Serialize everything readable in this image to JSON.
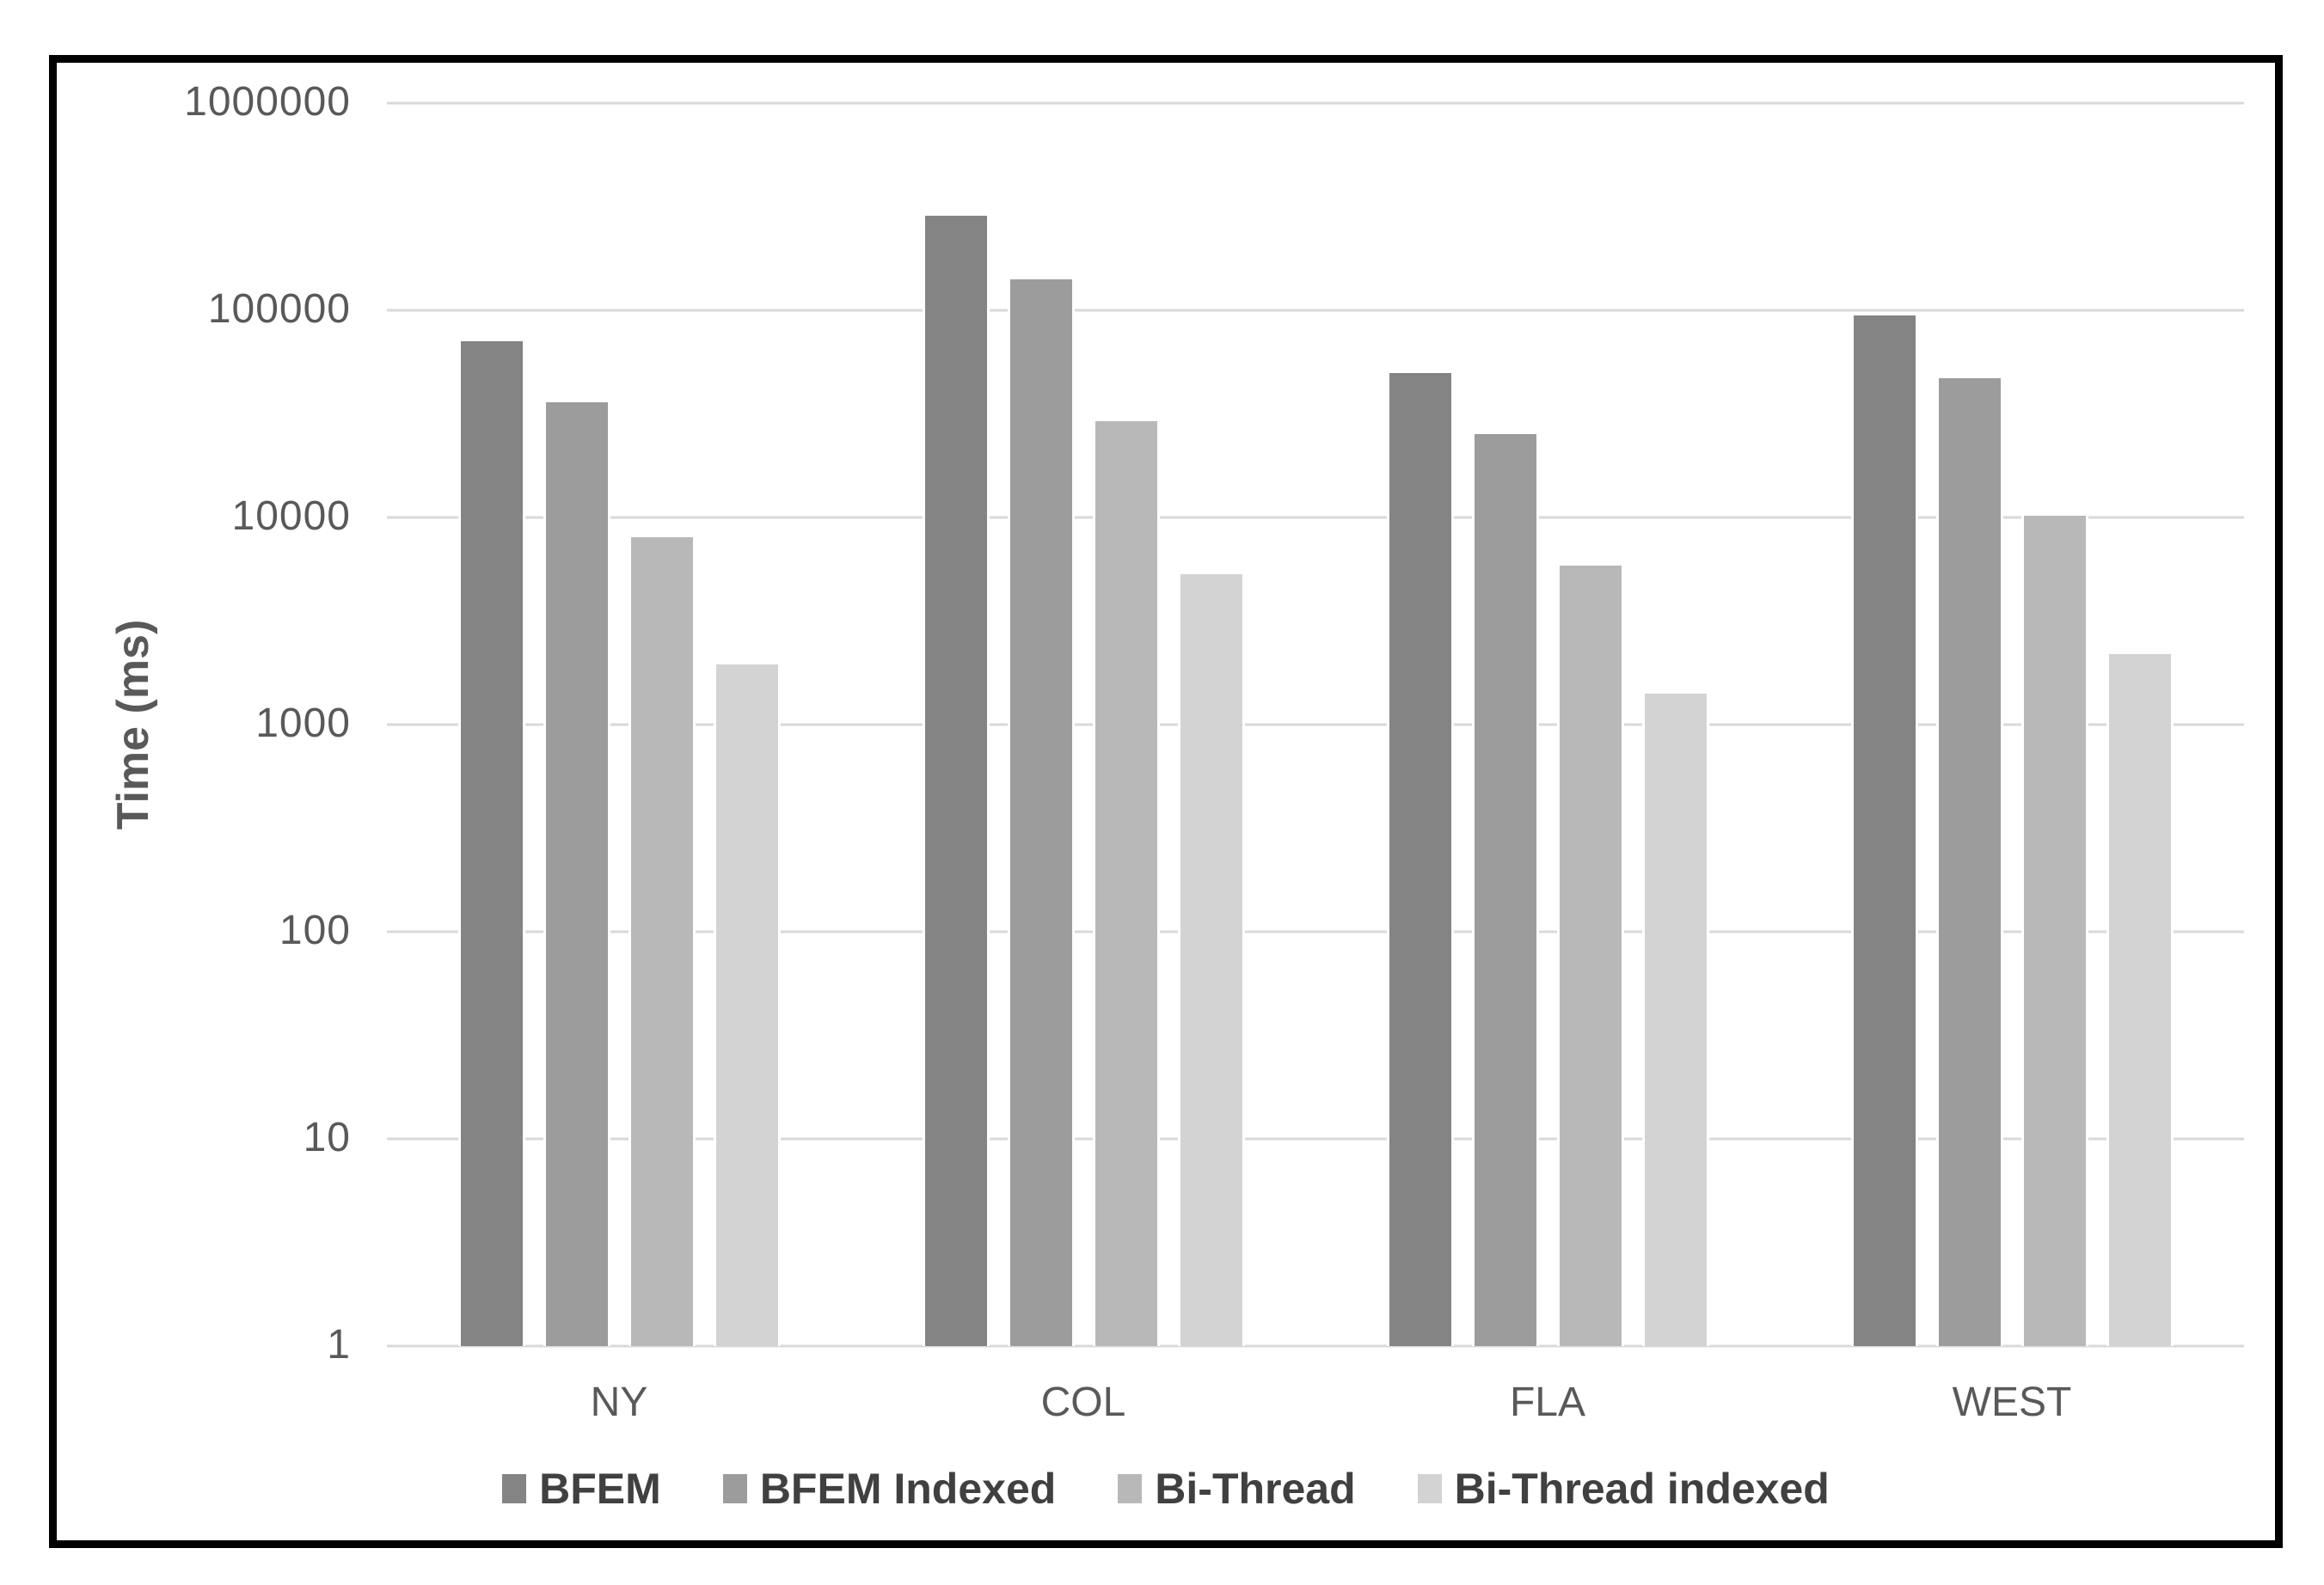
{
  "chart_data": {
    "type": "bar",
    "scale": "log",
    "title": "",
    "xlabel": "",
    "ylabel": "Time (ms)",
    "ylim": [
      1,
      1000000
    ],
    "y_tick_labels": [
      "1000000",
      "100000",
      "10000",
      "1000",
      "100",
      "10",
      "1"
    ],
    "grid": true,
    "legend_position": "bottom",
    "categories": [
      "NY",
      "COL",
      "FLA",
      "WEST"
    ],
    "series": [
      {
        "name": "BFEM",
        "color": "#848484",
        "values": [
          73000,
          295000,
          51000,
          97000
        ]
      },
      {
        "name": "BFEM Indexed",
        "color": "#9c9c9c",
        "values": [
          37000,
          145000,
          26000,
          48500
        ]
      },
      {
        "name": "Bi-Thread",
        "color": "#b8b8b8",
        "values": [
          8300,
          30000,
          6000,
          10500
        ]
      },
      {
        "name": "Bi-Thread indexed",
        "color": "#d3d3d3",
        "values": [
          2000,
          5500,
          1450,
          2250
        ]
      }
    ],
    "colors": {
      "gridline": "#d9d9d9",
      "axis_line": "#d9d9d9",
      "tick_text": "#595959",
      "category_text": "#595959",
      "axis_title_text": "#595959",
      "legend_text": "#404040",
      "frame_border": "#000000",
      "background": "#ffffff"
    }
  }
}
